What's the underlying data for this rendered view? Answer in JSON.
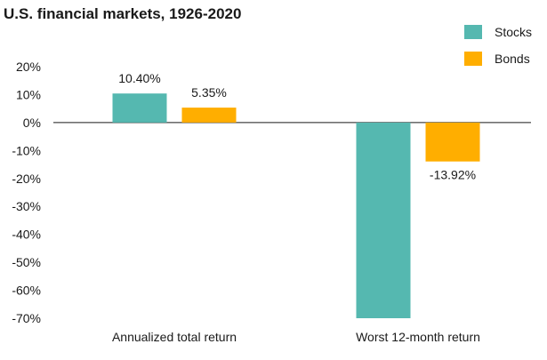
{
  "chart_data": {
    "type": "bar",
    "title": "U.S. financial markets, 1926-2020",
    "xlabel": "",
    "ylabel": "",
    "categories": [
      "Annualized total return",
      "Worst 12-month return"
    ],
    "series": [
      {
        "name": "Stocks",
        "values": [
          10.4,
          -70.0
        ],
        "labels": [
          "10.40%",
          ""
        ],
        "color": "#55b8b0"
      },
      {
        "name": "Bonds",
        "values": [
          5.35,
          -13.92
        ],
        "labels": [
          "5.35%",
          "-13.92%"
        ],
        "color": "#ffae00"
      }
    ],
    "ylim": [
      -70,
      20
    ],
    "yticks": [
      20,
      10,
      0,
      -10,
      -20,
      -30,
      -40,
      -50,
      -60,
      -70
    ],
    "ytick_labels": [
      "20%",
      "10%",
      "0%",
      "-10%",
      "-20%",
      "-30%",
      "-40%",
      "-50%",
      "-60%",
      "-70%"
    ],
    "grid": false,
    "legend_position": "top-right"
  }
}
